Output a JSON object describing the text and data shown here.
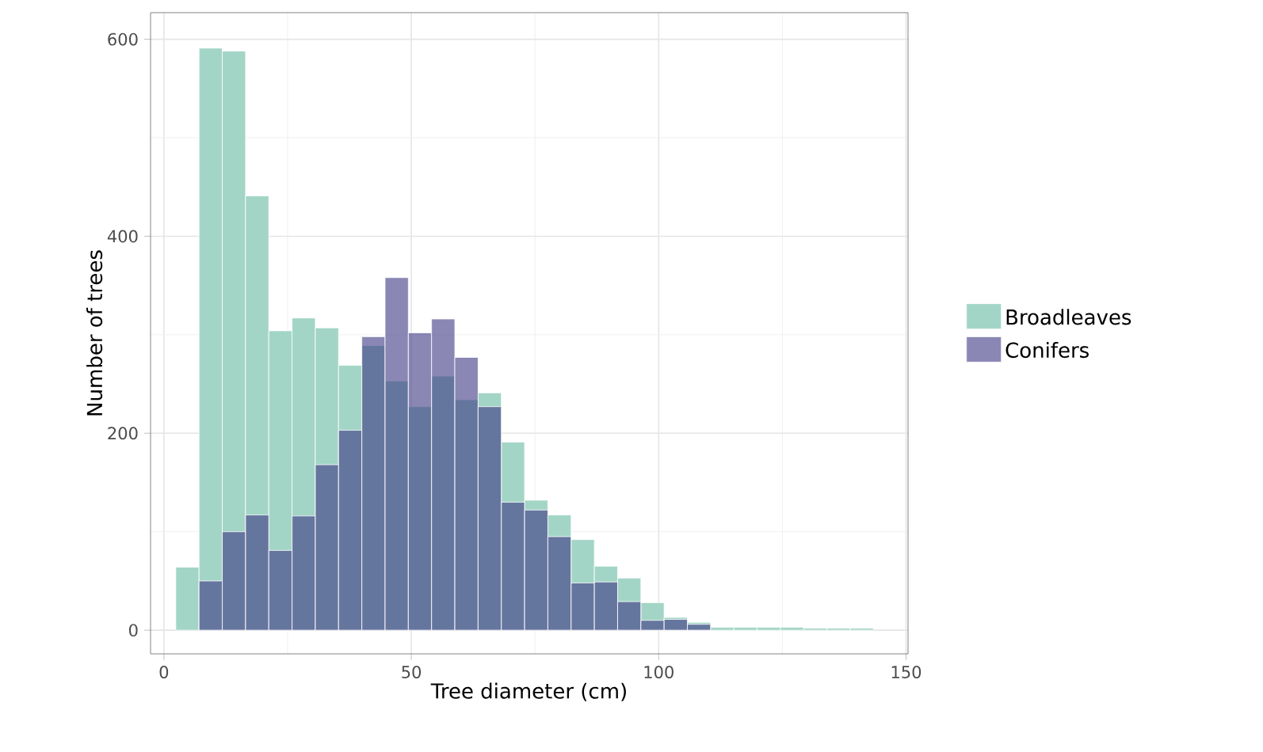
{
  "chart_data": {
    "type": "histogram",
    "xlabel": "Tree diameter (cm)",
    "ylabel": "Number of trees",
    "bins": [
      2.4,
      7.1,
      11.8,
      16.5,
      21.2,
      25.9,
      30.6,
      35.3,
      40.0,
      44.7,
      49.4,
      54.1,
      58.8,
      63.5,
      68.2,
      72.9,
      77.6,
      82.3,
      87.0,
      91.7,
      96.4,
      101.1,
      105.8,
      110.5,
      115.2,
      119.9,
      124.6,
      129.3,
      134.0,
      138.7,
      143.4
    ],
    "series": [
      {
        "name": "Broadleaves",
        "color": "#a3d5c6",
        "values": [
          64,
          591,
          588,
          441,
          304,
          317,
          307,
          269,
          289,
          253,
          227,
          258,
          234,
          241,
          191,
          132,
          117,
          92,
          65,
          53,
          28,
          13,
          8,
          3,
          3,
          3,
          3,
          2,
          2,
          2
        ]
      },
      {
        "name": "Conifers",
        "color": "#8a87b5",
        "values": [
          null,
          50,
          100,
          117,
          81,
          116,
          168,
          203,
          298,
          358,
          302,
          316,
          277,
          227,
          130,
          122,
          95,
          48,
          49,
          29,
          10,
          11,
          6,
          null,
          null,
          null,
          null,
          null,
          null,
          null
        ]
      }
    ],
    "xlim": [
      -2.7,
      150.4
    ],
    "ylim": [
      -24,
      627
    ],
    "xticks": [
      0,
      50,
      100,
      150
    ],
    "yticks": [
      0,
      200,
      400,
      600
    ],
    "grid": true,
    "legend": "right"
  }
}
